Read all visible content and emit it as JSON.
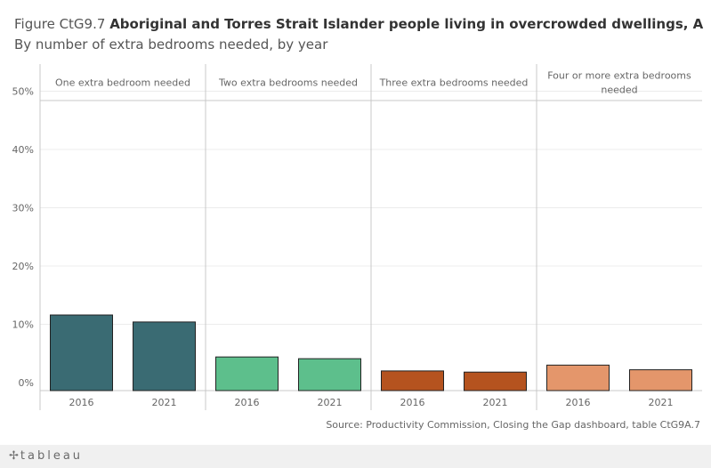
{
  "header": {
    "title_prefix": "Figure CtG9.7",
    "title_main": "Aboriginal and Torres Strait Islander people living in overcrowded dwellings, Aust",
    "subtitle": "By number of extra bedrooms needed, by year"
  },
  "source": "Source: Productivity Commission, Closing the Gap dashboard, table CtG9A.7",
  "footer": {
    "logo_mark": "✢",
    "logo_text": "tableau"
  },
  "chart_data": {
    "type": "bar",
    "y_ticks": [
      {
        "value": 0,
        "label": "0%"
      },
      {
        "value": 10,
        "label": "10%"
      },
      {
        "value": 20,
        "label": "20%"
      },
      {
        "value": 30,
        "label": "30%"
      },
      {
        "value": 40,
        "label": "40%"
      },
      {
        "value": 50,
        "label": "50%"
      }
    ],
    "ylim": [
      0,
      52
    ],
    "panels": [
      {
        "label_lines": [
          "One extra bedroom needed"
        ],
        "color": "#3a6b73",
        "bars": [
          {
            "x": "2016",
            "value": 11.6
          },
          {
            "x": "2021",
            "value": 10.4
          }
        ]
      },
      {
        "label_lines": [
          "Two extra bedrooms needed"
        ],
        "color": "#5dbf8c",
        "bars": [
          {
            "x": "2016",
            "value": 4.4
          },
          {
            "x": "2021",
            "value": 4.1
          }
        ]
      },
      {
        "label_lines": [
          "Three extra bedrooms needed"
        ],
        "color": "#b5531f",
        "bars": [
          {
            "x": "2016",
            "value": 2.0
          },
          {
            "x": "2021",
            "value": 1.8
          }
        ]
      },
      {
        "label_lines": [
          "Four or more extra bedrooms",
          "needed"
        ],
        "color": "#e4966b",
        "bars": [
          {
            "x": "2016",
            "value": 3.0
          },
          {
            "x": "2021",
            "value": 2.2
          }
        ]
      }
    ],
    "grid": true,
    "legend": "none"
  }
}
